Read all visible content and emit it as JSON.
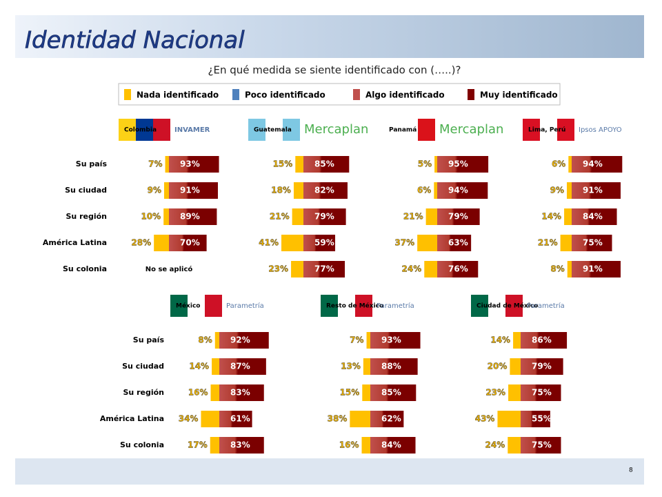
{
  "header": {
    "title": "Identidad Nacional",
    "subtitle": "¿En qué medida se siente identificado con (…..)?"
  },
  "legend": [
    {
      "name": "Nada identificado",
      "color": "#ffc000"
    },
    {
      "name": "Poco identificado",
      "color": "#4f81bd"
    },
    {
      "name": "Algo identificado",
      "color": "#c0504d"
    },
    {
      "name": "Muy identificado",
      "color": "#800000"
    }
  ],
  "row_labels": [
    "Su país",
    "Su ciudad",
    "Su región",
    "América Latina",
    "Su colonia"
  ],
  "panels": [
    {
      "country": "Colombia",
      "company": "INVAMER",
      "left": [
        7,
        9,
        10,
        28,
        null
      ],
      "left_labels": [
        "7%",
        "9%",
        "10%",
        "28%",
        null
      ],
      "right": [
        93,
        91,
        89,
        70,
        null
      ],
      "right_labels": [
        "93%",
        "91%",
        "89%",
        "70%",
        null
      ],
      "note": "No se aplicó"
    },
    {
      "country": "Guatemala",
      "company": "Mercaplan",
      "left": [
        15,
        18,
        21,
        41,
        23
      ],
      "left_labels": [
        "15%",
        "18%",
        "21%",
        "41%",
        "23%"
      ],
      "right": [
        85,
        82,
        79,
        59,
        77
      ],
      "right_labels": [
        "85%",
        "82%",
        "79%",
        "59%",
        "77%"
      ]
    },
    {
      "country": "Panamá",
      "company": "Mercaplan",
      "left": [
        5,
        6,
        21,
        37,
        24
      ],
      "left_labels": [
        "5%",
        "6%",
        "21%",
        "37%",
        "24%"
      ],
      "right": [
        95,
        94,
        79,
        63,
        76
      ],
      "right_labels": [
        "95%",
        "94%",
        "79%",
        "63%",
        "76%"
      ]
    },
    {
      "country": "Lima, Perú",
      "company": "Ipsos APOYO",
      "left": [
        6,
        9,
        14,
        21,
        8
      ],
      "left_labels": [
        "6%",
        "9%",
        "14%",
        "21%",
        "8%"
      ],
      "right": [
        94,
        91,
        84,
        75,
        91
      ],
      "right_labels": [
        "94%",
        "91%",
        "84%",
        "75%",
        "91%"
      ]
    },
    {
      "country": "México",
      "company": "Parametría",
      "left": [
        8,
        14,
        16,
        34,
        17
      ],
      "left_labels": [
        "8%",
        "14%",
        "16%",
        "34%",
        "17%"
      ],
      "right": [
        92,
        87,
        83,
        61,
        83
      ],
      "right_labels": [
        "92%",
        "87%",
        "83%",
        "61%",
        "83%"
      ]
    },
    {
      "country": "Resto de México",
      "company": "Parametría",
      "left": [
        7,
        13,
        15,
        38,
        16
      ],
      "left_labels": [
        "7%",
        "13%",
        "15%",
        "38%",
        "16%"
      ],
      "right": [
        93,
        88,
        85,
        62,
        84
      ],
      "right_labels": [
        "93%",
        "88%",
        "85%",
        "62%",
        "84%"
      ]
    },
    {
      "country": "Ciudad de México",
      "company": "Parametría",
      "left": [
        14,
        20,
        23,
        43,
        24
      ],
      "left_labels": [
        "14%",
        "20%",
        "23%",
        "43%",
        "24%"
      ],
      "right": [
        86,
        79,
        75,
        55,
        75
      ],
      "right_labels": [
        "86%",
        "79%",
        "75%",
        "55%",
        "75%"
      ]
    }
  ],
  "footer": "8"
}
